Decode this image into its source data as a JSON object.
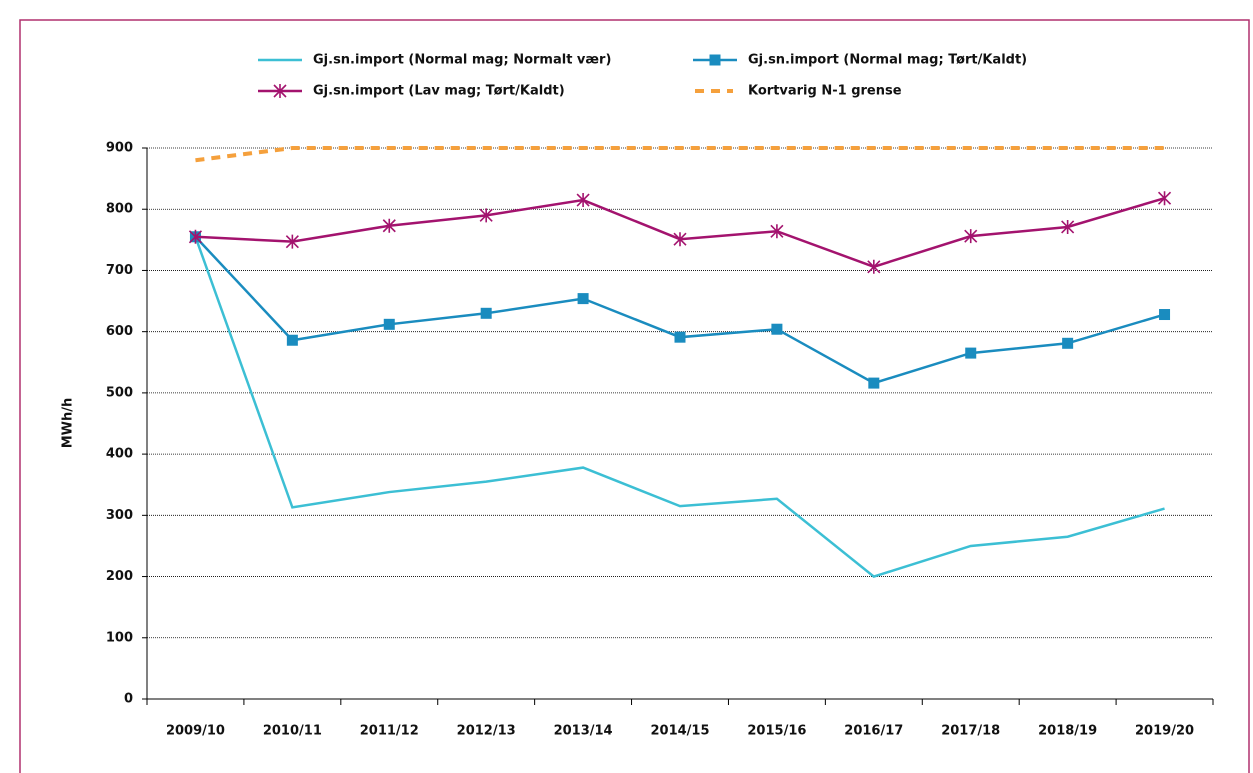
{
  "chart_data": {
    "type": "line",
    "y_label": "MWh/h",
    "categories": [
      "2009/10",
      "2010/11",
      "2011/12",
      "2012/13",
      "2013/14",
      "2014/15",
      "2015/16",
      "2016/17",
      "2017/18",
      "2018/19",
      "2019/20"
    ],
    "series": [
      {
        "name": "Gj.sn.import (Normal mag; Normalt vær)",
        "color": "#3cbfd4",
        "marker": "none",
        "dash": false,
        "values": [
          755,
          313,
          338,
          355,
          378,
          315,
          327,
          200,
          250,
          265,
          311
        ]
      },
      {
        "name": "Gj.sn.import (Normal mag; Tørt/Kaldt)",
        "color": "#1a8cbf",
        "marker": "square",
        "dash": false,
        "values": [
          755,
          586,
          612,
          630,
          654,
          591,
          604,
          516,
          565,
          581,
          628
        ]
      },
      {
        "name": "Gj.sn.import (Lav mag; Tørt/Kaldt)",
        "color": "#a3136e",
        "marker": "star",
        "dash": false,
        "values": [
          755,
          747,
          773,
          790,
          815,
          751,
          764,
          706,
          756,
          771,
          818
        ]
      },
      {
        "name": "Kortvarig N-1 grense",
        "color": "#f5a03c",
        "marker": "none",
        "dash": true,
        "values": [
          880,
          900,
          900,
          900,
          900,
          900,
          900,
          900,
          900,
          900,
          900
        ]
      }
    ],
    "ylim": [
      0,
      900
    ],
    "yticks": [
      0,
      100,
      200,
      300,
      400,
      500,
      600,
      700,
      800,
      900
    ],
    "grid": true,
    "legend": "top"
  }
}
